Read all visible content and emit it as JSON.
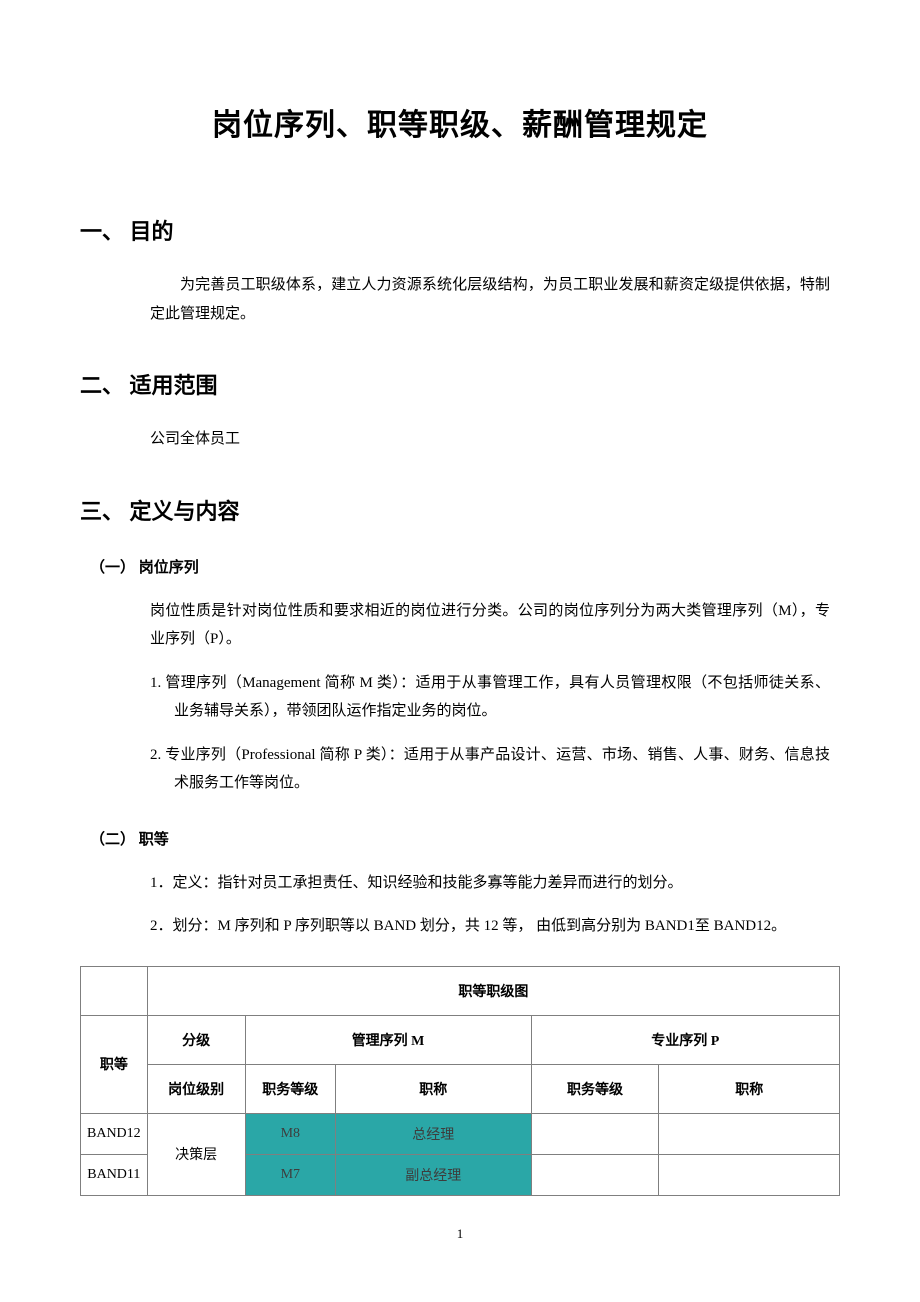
{
  "title": "岗位序列、职等职级、薪酬管理规定",
  "sections": {
    "s1": {
      "heading": "一、 目的",
      "body": "为完善员工职级体系，建立人力资源系统化层级结构，为员工职业发展和薪资定级提供依据，特制定此管理规定。"
    },
    "s2": {
      "heading": "二、 适用范围",
      "body": "公司全体员工"
    },
    "s3": {
      "heading": "三、 定义与内容",
      "sub1": {
        "heading": "（一） 岗位序列",
        "body": "岗位性质是针对岗位性质和要求相近的岗位进行分类。公司的岗位序列分为两大类管理序列（M），专业序列（P）。",
        "item1": "1.   管理序列（Management 简称 M 类）：适用于从事管理工作，具有人员管理权限（不包括师徒关系、业务辅导关系），带领团队运作指定业务的岗位。",
        "item2": "2.   专业序列（Professional 简称 P 类）：适用于从事产品设计、运营、市场、销售、人事、财务、信息技术服务工作等岗位。"
      },
      "sub2": {
        "heading": "（二） 职等",
        "item1": "1．定义：指针对员工承担责任、知识经验和技能多寡等能力差异而进行的划分。",
        "item2": "2．划分：M 序列和 P 序列职等以 BAND 划分，共 12 等， 由低到高分别为 BAND1至 BAND12。"
      }
    }
  },
  "table": {
    "title": "职等职级图",
    "headers": {
      "band": "职等",
      "level": "分级",
      "mSeries": "管理序列 M",
      "pSeries": "专业序列 P",
      "posLevel": "岗位级别",
      "jobGrade": "职务等级",
      "jobTitle": "职称",
      "pJobGrade": "职务等级",
      "pJobTitle": "职称"
    },
    "rows": [
      {
        "band": "BAND12",
        "level": "决策层",
        "mGrade": "M8",
        "mTitle": "总经理",
        "pGrade": "",
        "pTitle": ""
      },
      {
        "band": "BAND11",
        "level": "",
        "mGrade": "M7",
        "mTitle": "副总经理",
        "pGrade": "",
        "pTitle": ""
      }
    ],
    "styling": {
      "teal_color": "#2aa7a7",
      "border_color": "#7f7f7f",
      "font_size": 14
    }
  },
  "pageNumber": "1"
}
